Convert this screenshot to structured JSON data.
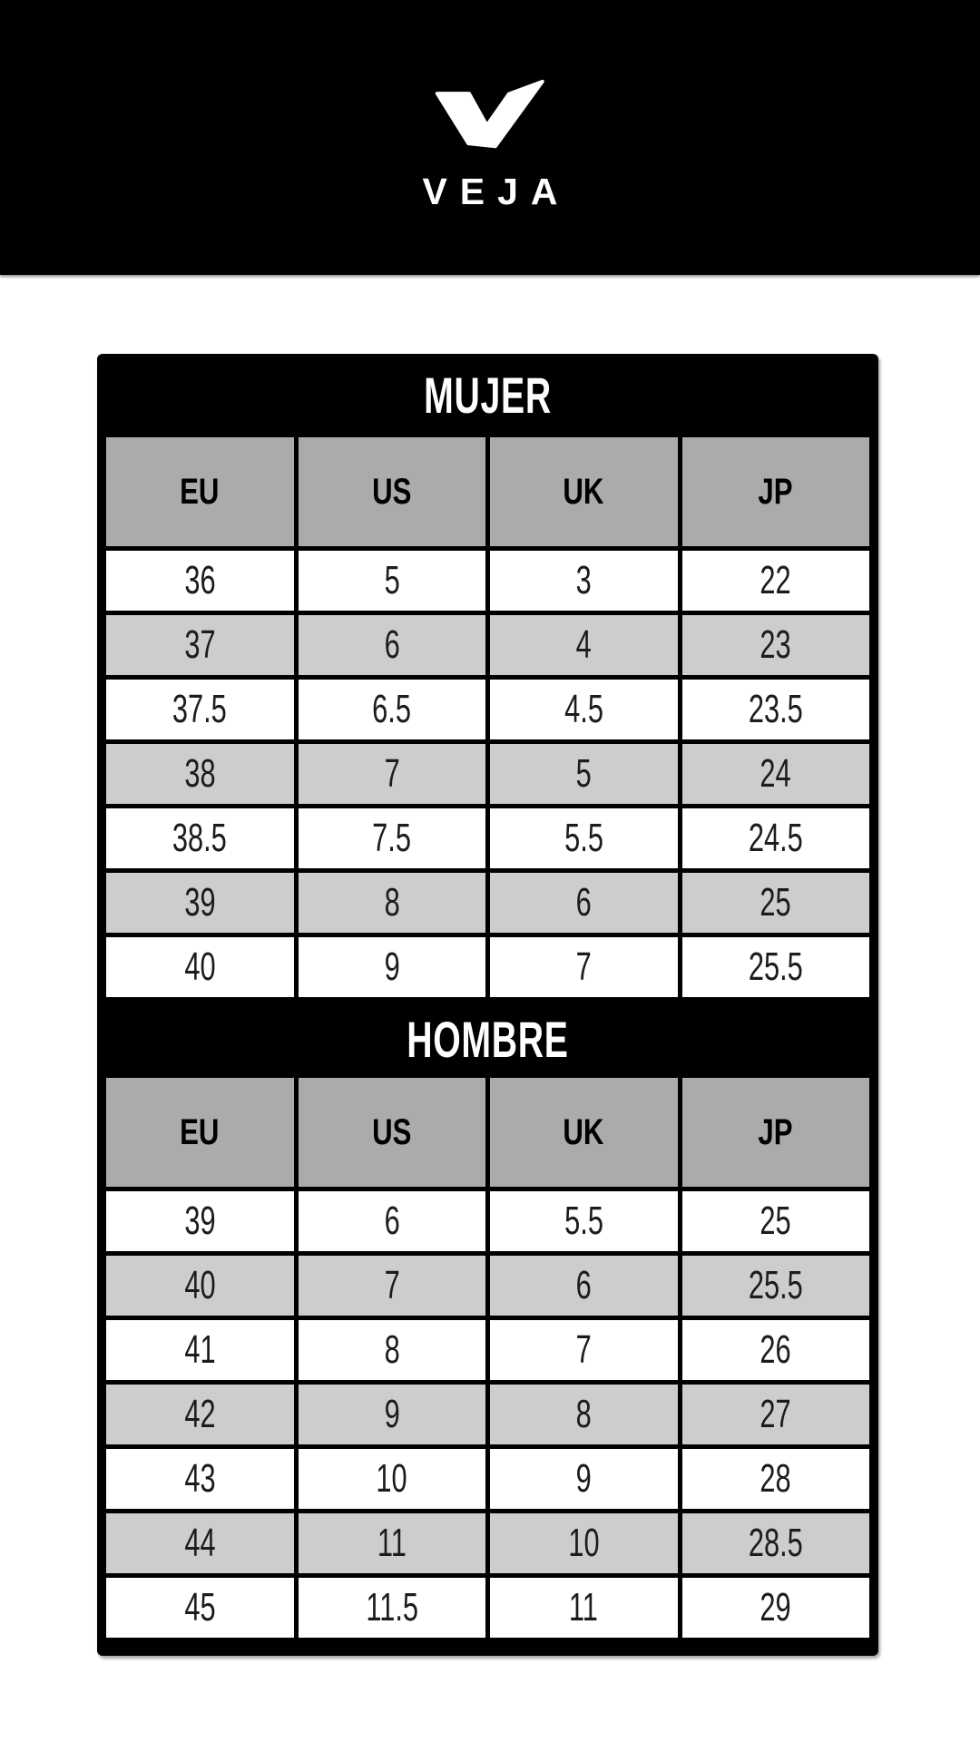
{
  "brand": {
    "logo": "veja-v-checkmark",
    "wordmark": "VEJA"
  },
  "tables": [
    {
      "title": "MUJER",
      "columns": [
        "EU",
        "US",
        "UK",
        "JP"
      ],
      "rows": [
        [
          "36",
          "5",
          "3",
          "22"
        ],
        [
          "37",
          "6",
          "4",
          "23"
        ],
        [
          "37.5",
          "6.5",
          "4.5",
          "23.5"
        ],
        [
          "38",
          "7",
          "5",
          "24"
        ],
        [
          "38.5",
          "7.5",
          "5.5",
          "24.5"
        ],
        [
          "39",
          "8",
          "6",
          "25"
        ],
        [
          "40",
          "9",
          "7",
          "25.5"
        ]
      ]
    },
    {
      "title": "HOMBRE",
      "columns": [
        "EU",
        "US",
        "UK",
        "JP"
      ],
      "rows": [
        [
          "39",
          "6",
          "5.5",
          "25"
        ],
        [
          "40",
          "7",
          "6",
          "25.5"
        ],
        [
          "41",
          "8",
          "7",
          "26"
        ],
        [
          "42",
          "9",
          "8",
          "27"
        ],
        [
          "43",
          "10",
          "9",
          "28"
        ],
        [
          "44",
          "11",
          "10",
          "28.5"
        ],
        [
          "45",
          "11.5",
          "11",
          "29"
        ]
      ]
    }
  ],
  "colors": {
    "header_background": "#000000",
    "table_background": "#000000",
    "column_header_gray": "#ABABAB",
    "alt_row_gray": "#CDCDCD",
    "row_white": "#FFFFFF",
    "title_text": "#FFFFFF",
    "cell_text": "#1C1C1C"
  }
}
